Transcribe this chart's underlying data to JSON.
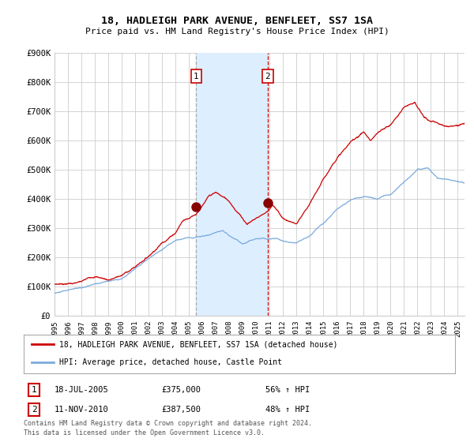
{
  "title": "18, HADLEIGH PARK AVENUE, BENFLEET, SS7 1SA",
  "subtitle": "Price paid vs. HM Land Registry's House Price Index (HPI)",
  "ylabel_values": [
    "£0",
    "£100K",
    "£200K",
    "£300K",
    "£400K",
    "£500K",
    "£600K",
    "£700K",
    "£800K",
    "£900K"
  ],
  "ylim": [
    0,
    900000
  ],
  "xlim_start": 1995.0,
  "xlim_end": 2025.5,
  "sale1_date": 2005.54,
  "sale1_price": 375000,
  "sale1_label": "1",
  "sale2_date": 2010.86,
  "sale2_price": 387500,
  "sale2_label": "2",
  "sale1_info_date": "18-JUL-2005",
  "sale1_info_price": "£375,000",
  "sale1_info_hpi": "56% ↑ HPI",
  "sale2_info_date": "11-NOV-2010",
  "sale2_info_price": "£387,500",
  "sale2_info_hpi": "48% ↑ HPI",
  "legend_line1": "18, HADLEIGH PARK AVENUE, BENFLEET, SS7 1SA (detached house)",
  "legend_line2": "HPI: Average price, detached house, Castle Point",
  "footnote1": "Contains HM Land Registry data © Crown copyright and database right 2024.",
  "footnote2": "This data is licensed under the Open Government Licence v3.0.",
  "line_color_red": "#cc0000",
  "line_color_blue": "#7aaadd",
  "marker_color": "#880000",
  "shade_color": "#ddeeff",
  "vline1_color": "#aaaaaa",
  "vline2_color": "#cc0000",
  "background_color": "#ffffff",
  "grid_color": "#cccccc",
  "xtick_years": [
    1995,
    1996,
    1997,
    1998,
    1999,
    2000,
    2001,
    2002,
    2003,
    2004,
    2005,
    2006,
    2007,
    2008,
    2009,
    2010,
    2011,
    2012,
    2013,
    2014,
    2015,
    2016,
    2017,
    2018,
    2019,
    2020,
    2021,
    2022,
    2023,
    2024,
    2025
  ]
}
